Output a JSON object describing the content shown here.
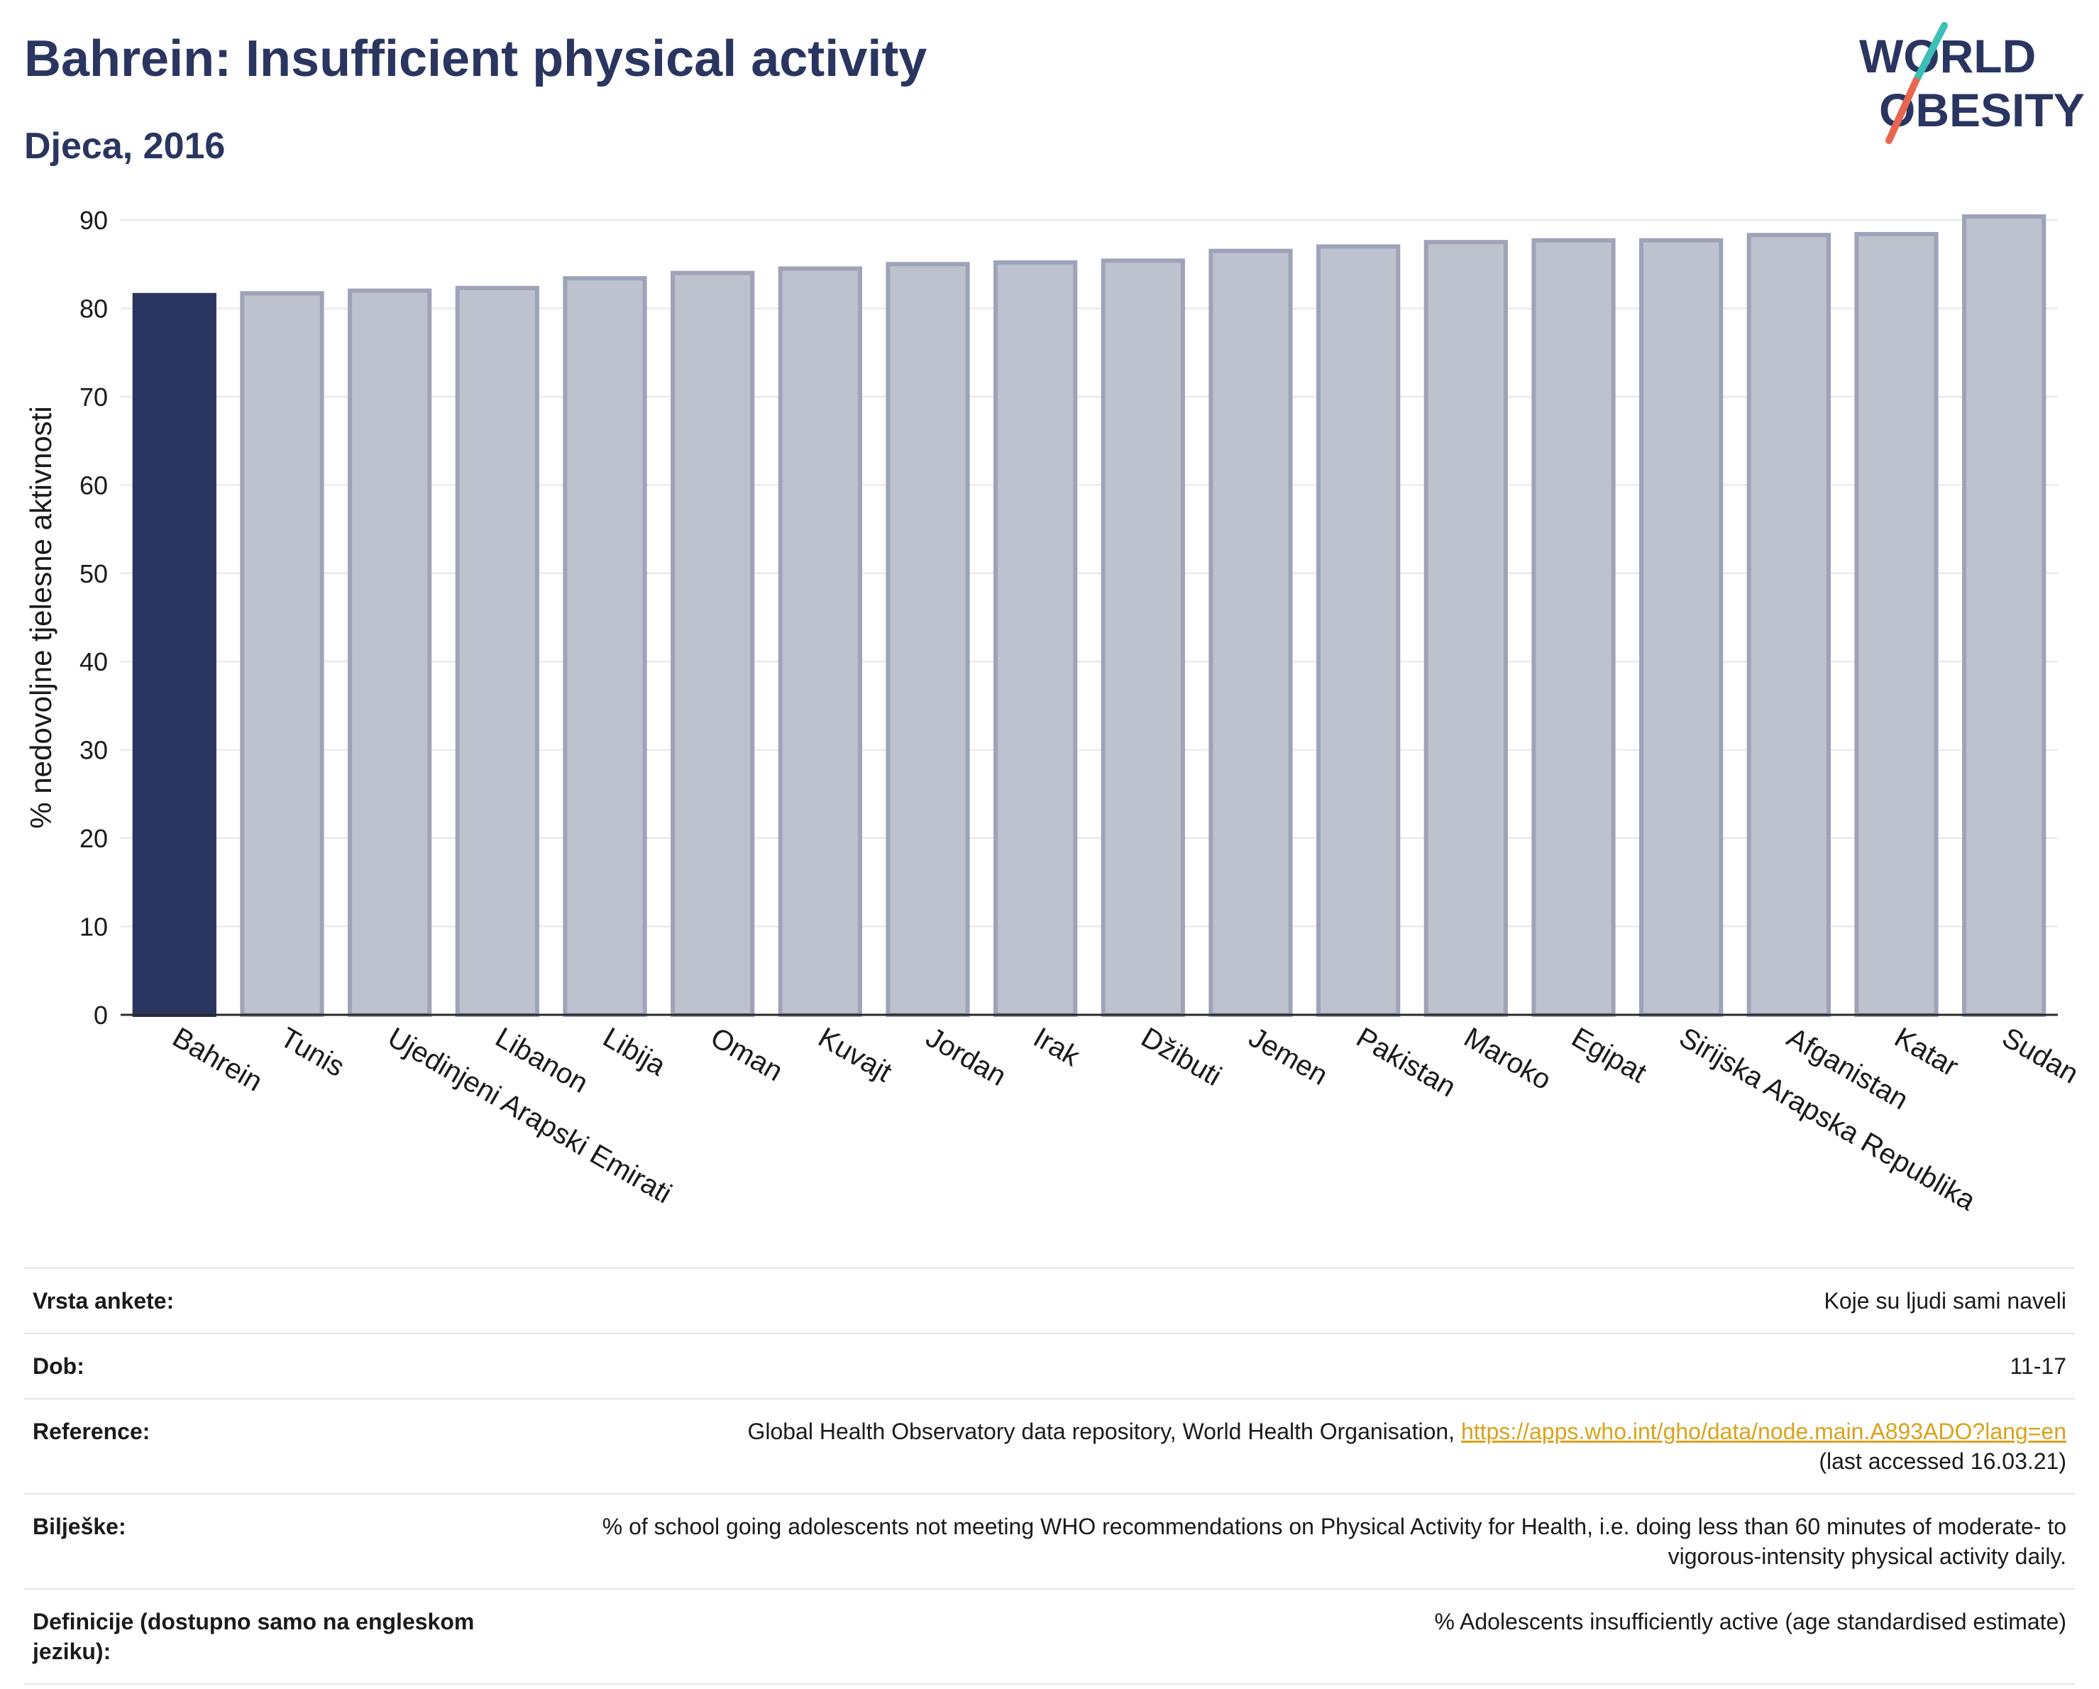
{
  "header": {
    "title": "Bahrein: Insufficient physical activity",
    "subtitle": "Djeca, 2016"
  },
  "logo": {
    "line1": "WORLD",
    "line2": "OBESITY",
    "accent_colors": [
      "#3bbfb7",
      "#e8664f"
    ]
  },
  "chart_data": {
    "type": "bar",
    "ylabel": "% nedovoljne tjelesne aktivnosti",
    "xlabel": "",
    "ylim": [
      0,
      90
    ],
    "yticks": [
      0,
      10,
      20,
      30,
      40,
      50,
      60,
      70,
      80,
      90
    ],
    "grid": true,
    "highlight_color": "#2a3560",
    "bar_color": "#bec1ce",
    "bar_border_color": "#9ea3b8",
    "categories": [
      "Bahrein",
      "Tunis",
      "Ujedinjeni Arapski Emirati",
      "Libanon",
      "Libija",
      "Oman",
      "Kuvajt",
      "Jordan",
      "Irak",
      "Džibuti",
      "Jemen",
      "Pakistan",
      "Maroko",
      "Egipat",
      "Sirijska Arapska Republika",
      "Afganistan",
      "Katar",
      "Sudan"
    ],
    "values": [
      81.5,
      81.7,
      82.0,
      82.3,
      83.4,
      84.0,
      84.5,
      85.0,
      85.2,
      85.4,
      86.5,
      87.0,
      87.5,
      87.7,
      87.7,
      88.3,
      88.4,
      90.4
    ],
    "highlight_index": 0
  },
  "meta": {
    "rows": [
      {
        "label": "Vrsta ankete:",
        "value": "Koje su ljudi sami naveli"
      },
      {
        "label": "Dob:",
        "value": "11-17"
      },
      {
        "label": "Reference:",
        "value": "Global Health Observatory data repository, World Health Organisation, ",
        "link": "https://apps.who.int/gho/data/node.main.A893ADO?lang=en",
        "value2": "(last accessed 16.03.21)"
      },
      {
        "label": "Bilješke:",
        "value": "% of school going adolescents not meeting WHO recommendations on Physical Activity for Health, i.e. doing less than 60 minutes of moderate- to vigorous-intensity physical activity daily."
      },
      {
        "label": "Definicije (dostupno samo na engleskom jeziku):",
        "value": "% Adolescents insufficiently active (age standardised estimate)"
      }
    ]
  }
}
